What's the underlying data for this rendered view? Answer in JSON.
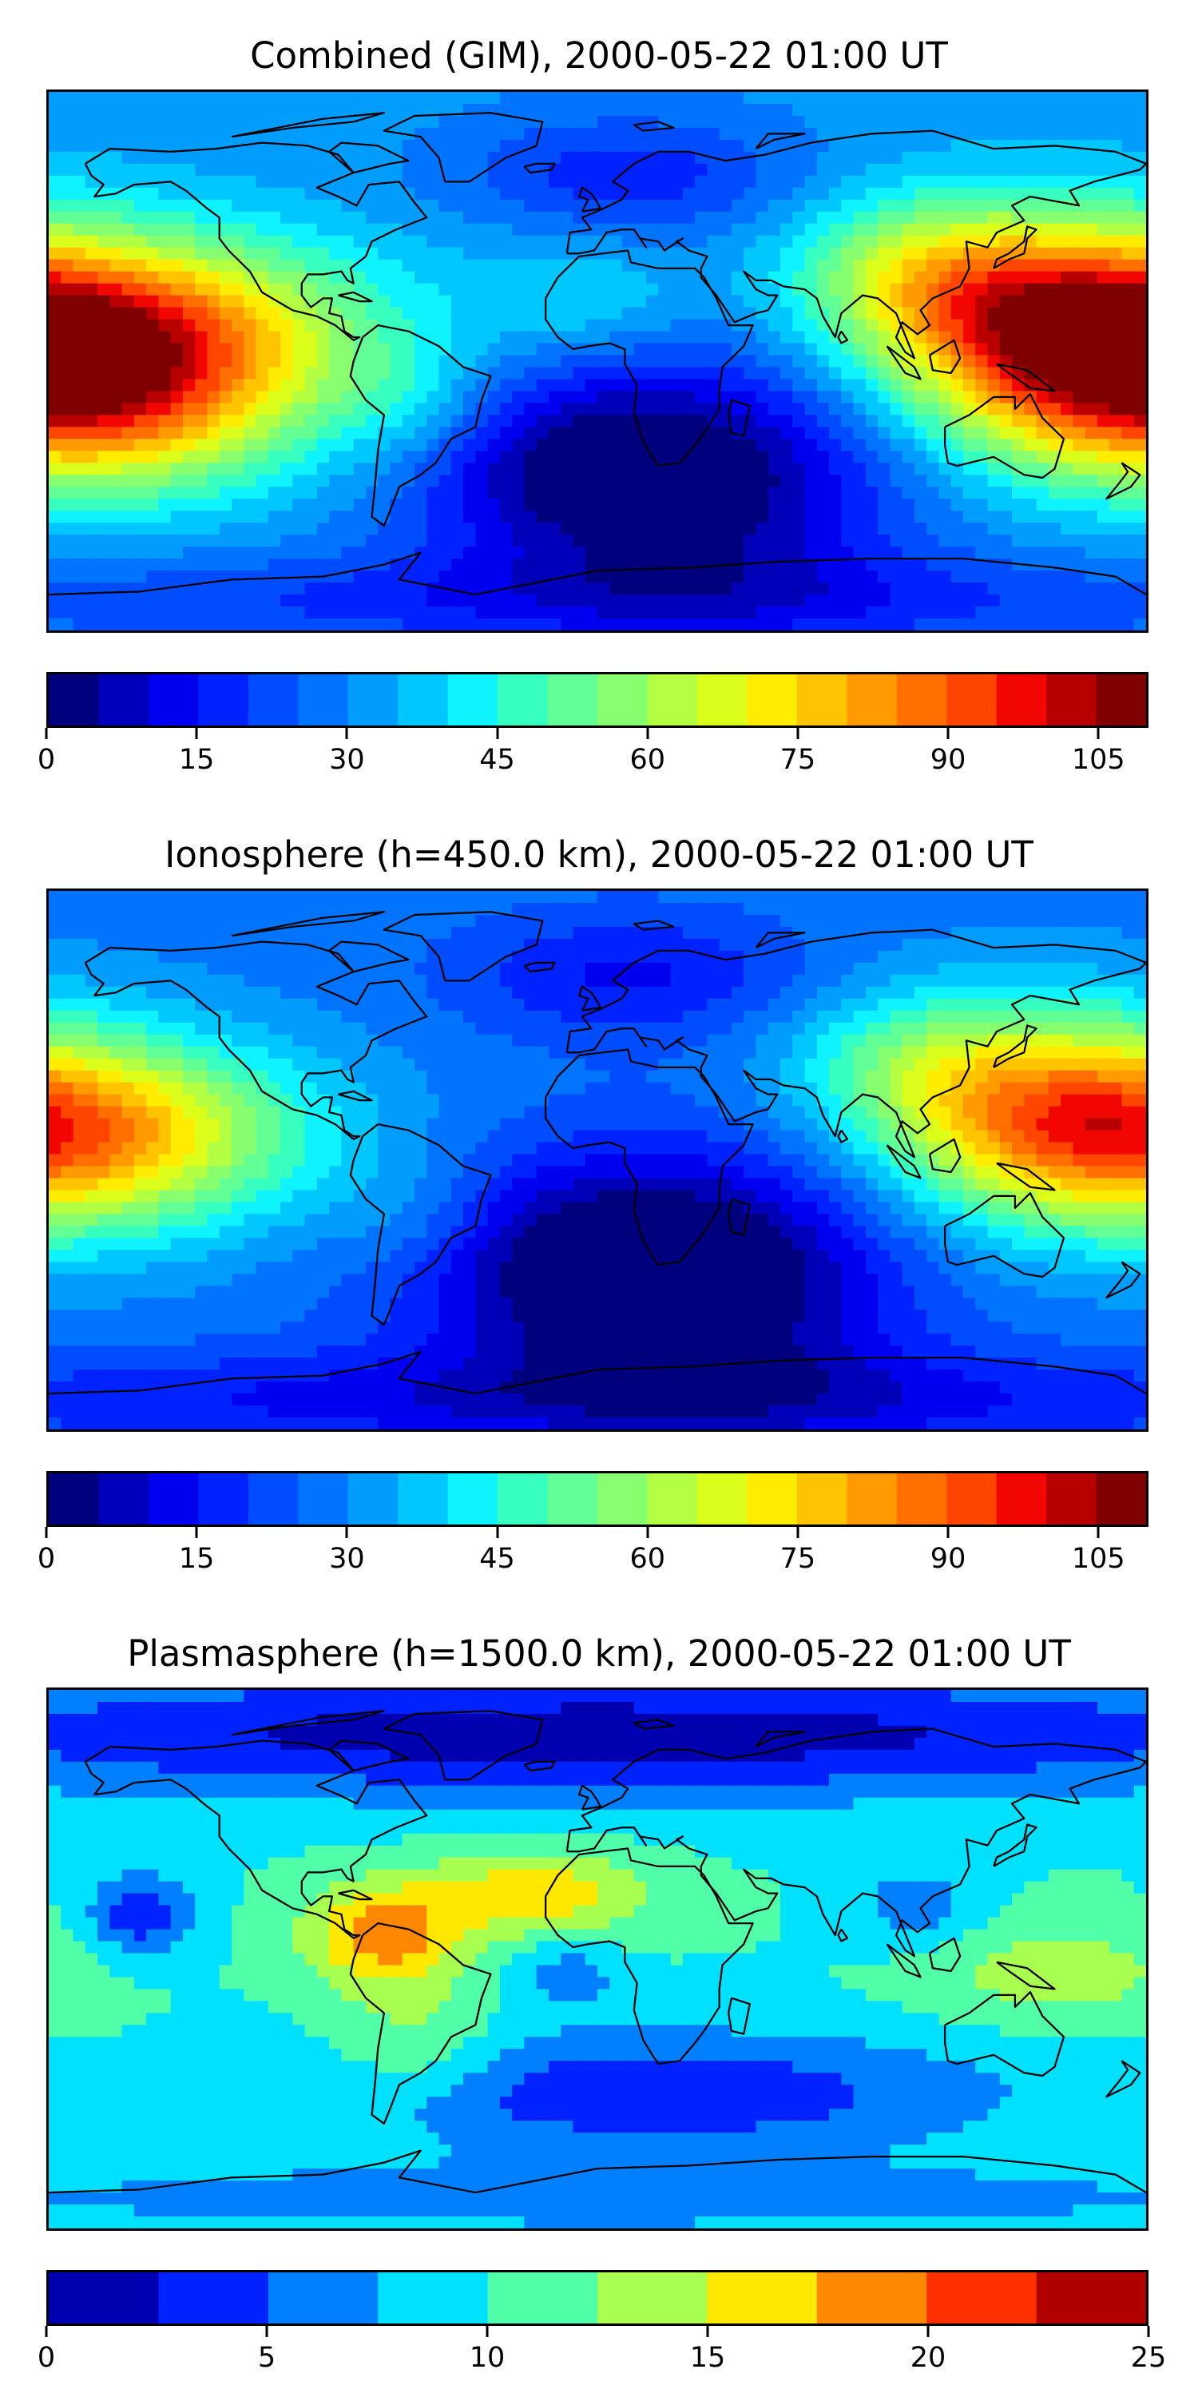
{
  "colors": {
    "jet22": [
      "#00007f",
      "#0000b8",
      "#0000f1",
      "#0022ff",
      "#004cff",
      "#0074ff",
      "#009dff",
      "#00c8ff",
      "#0ff2ff",
      "#37ffc0",
      "#61ff96",
      "#88ff6e",
      "#b2ff44",
      "#dbff1b",
      "#ffec00",
      "#ffc400",
      "#ff9b00",
      "#ff6f00",
      "#ff4600",
      "#f10700",
      "#b80000",
      "#7f0000"
    ],
    "jet10": [
      "#0000b0",
      "#0022ff",
      "#0080ff",
      "#00e0ff",
      "#50ffa8",
      "#a8ff50",
      "#ffe800",
      "#ff8800",
      "#ff3000",
      "#b00000"
    ],
    "coastline": "#000000"
  },
  "chart_data": [
    {
      "type": "heatmap",
      "title": "Combined (GIM), 2000-05-22 01:00 UT",
      "colorbar": {
        "range": [
          0,
          110
        ],
        "step": 5,
        "ticks": [
          0,
          15,
          30,
          45,
          60,
          75,
          90,
          105
        ]
      },
      "field": {
        "base": 32,
        "blobs": [
          {
            "lon": -158,
            "lat": 10,
            "amp": 55,
            "slon": 55,
            "slat": 22
          },
          {
            "lon": -165,
            "lat": -18,
            "amp": 38,
            "slon": 45,
            "slat": 20
          },
          {
            "lon": 148,
            "lat": 12,
            "amp": 42,
            "slon": 40,
            "slat": 25
          },
          {
            "lon": 105,
            "lat": 30,
            "amp": 22,
            "slon": 30,
            "slat": 18
          },
          {
            "lon": -5,
            "lat": 20,
            "amp": 10,
            "slon": 25,
            "slat": 15
          },
          {
            "lon": -60,
            "lat": -15,
            "amp": 10,
            "slon": 20,
            "slat": 15
          },
          {
            "lon": -15,
            "lat": -35,
            "amp": -20,
            "slon": 40,
            "slat": 25
          },
          {
            "lon": 40,
            "lat": -40,
            "amp": -26,
            "slon": 45,
            "slat": 30
          },
          {
            "lon": 10,
            "lat": 62,
            "amp": -15,
            "slon": 40,
            "slat": 15
          },
          {
            "lon": 0,
            "lat": -80,
            "amp": -14,
            "slon": 180,
            "slat": 12
          }
        ]
      }
    },
    {
      "type": "heatmap",
      "title": "Ionosphere  (h=450.0 km), 2000-05-22 01:00 UT",
      "colorbar": {
        "range": [
          0,
          110
        ],
        "step": 5,
        "ticks": [
          0,
          15,
          30,
          45,
          60,
          75,
          90,
          105
        ]
      },
      "field": {
        "base": 28,
        "blobs": [
          {
            "lon": -165,
            "lat": 8,
            "amp": 46,
            "slon": 50,
            "slat": 22
          },
          {
            "lon": 150,
            "lat": 15,
            "amp": 36,
            "slon": 40,
            "slat": 25
          },
          {
            "lon": 105,
            "lat": 32,
            "amp": 18,
            "slon": 30,
            "slat": 18
          },
          {
            "lon": -60,
            "lat": -20,
            "amp": 8,
            "slon": 20,
            "slat": 15
          },
          {
            "lon": -10,
            "lat": -35,
            "amp": -20,
            "slon": 45,
            "slat": 25
          },
          {
            "lon": 40,
            "lat": -40,
            "amp": -24,
            "slon": 45,
            "slat": 30
          },
          {
            "lon": 10,
            "lat": 62,
            "amp": -14,
            "slon": 40,
            "slat": 15
          },
          {
            "lon": 0,
            "lat": -80,
            "amp": -16,
            "slon": 180,
            "slat": 12
          }
        ]
      }
    },
    {
      "type": "heatmap",
      "title": "Plasmasphere (h=1500.0 km), 2000-05-22 01:00 UT",
      "colorbar": {
        "range": [
          0,
          25
        ],
        "step": 2.5,
        "ticks": [
          0,
          5,
          10,
          15,
          20,
          25
        ]
      },
      "field": {
        "base": 10,
        "blobs": [
          {
            "lon": -70,
            "lat": 8,
            "amp": 9,
            "slon": 18,
            "slat": 12
          },
          {
            "lon": -20,
            "lat": 22,
            "amp": 7,
            "slon": 25,
            "slat": 10
          },
          {
            "lon": -60,
            "lat": -30,
            "amp": 4,
            "slon": 20,
            "slat": 15
          },
          {
            "lon": -150,
            "lat": 15,
            "amp": -7,
            "slon": 12,
            "slat": 10
          },
          {
            "lon": 105,
            "lat": 18,
            "amp": -4,
            "slon": 15,
            "slat": 10
          },
          {
            "lon": -10,
            "lat": -5,
            "amp": -4,
            "slon": 12,
            "slat": 8
          },
          {
            "lon": 150,
            "lat": -5,
            "amp": 4,
            "slon": 30,
            "slat": 12
          },
          {
            "lon": 0,
            "lat": 75,
            "amp": -9,
            "slon": 180,
            "slat": 15
          },
          {
            "lon": 20,
            "lat": -45,
            "amp": -7,
            "slon": 80,
            "slat": 15
          },
          {
            "lon": 0,
            "lat": -80,
            "amp": -4,
            "slon": 180,
            "slat": 8
          }
        ]
      }
    }
  ]
}
